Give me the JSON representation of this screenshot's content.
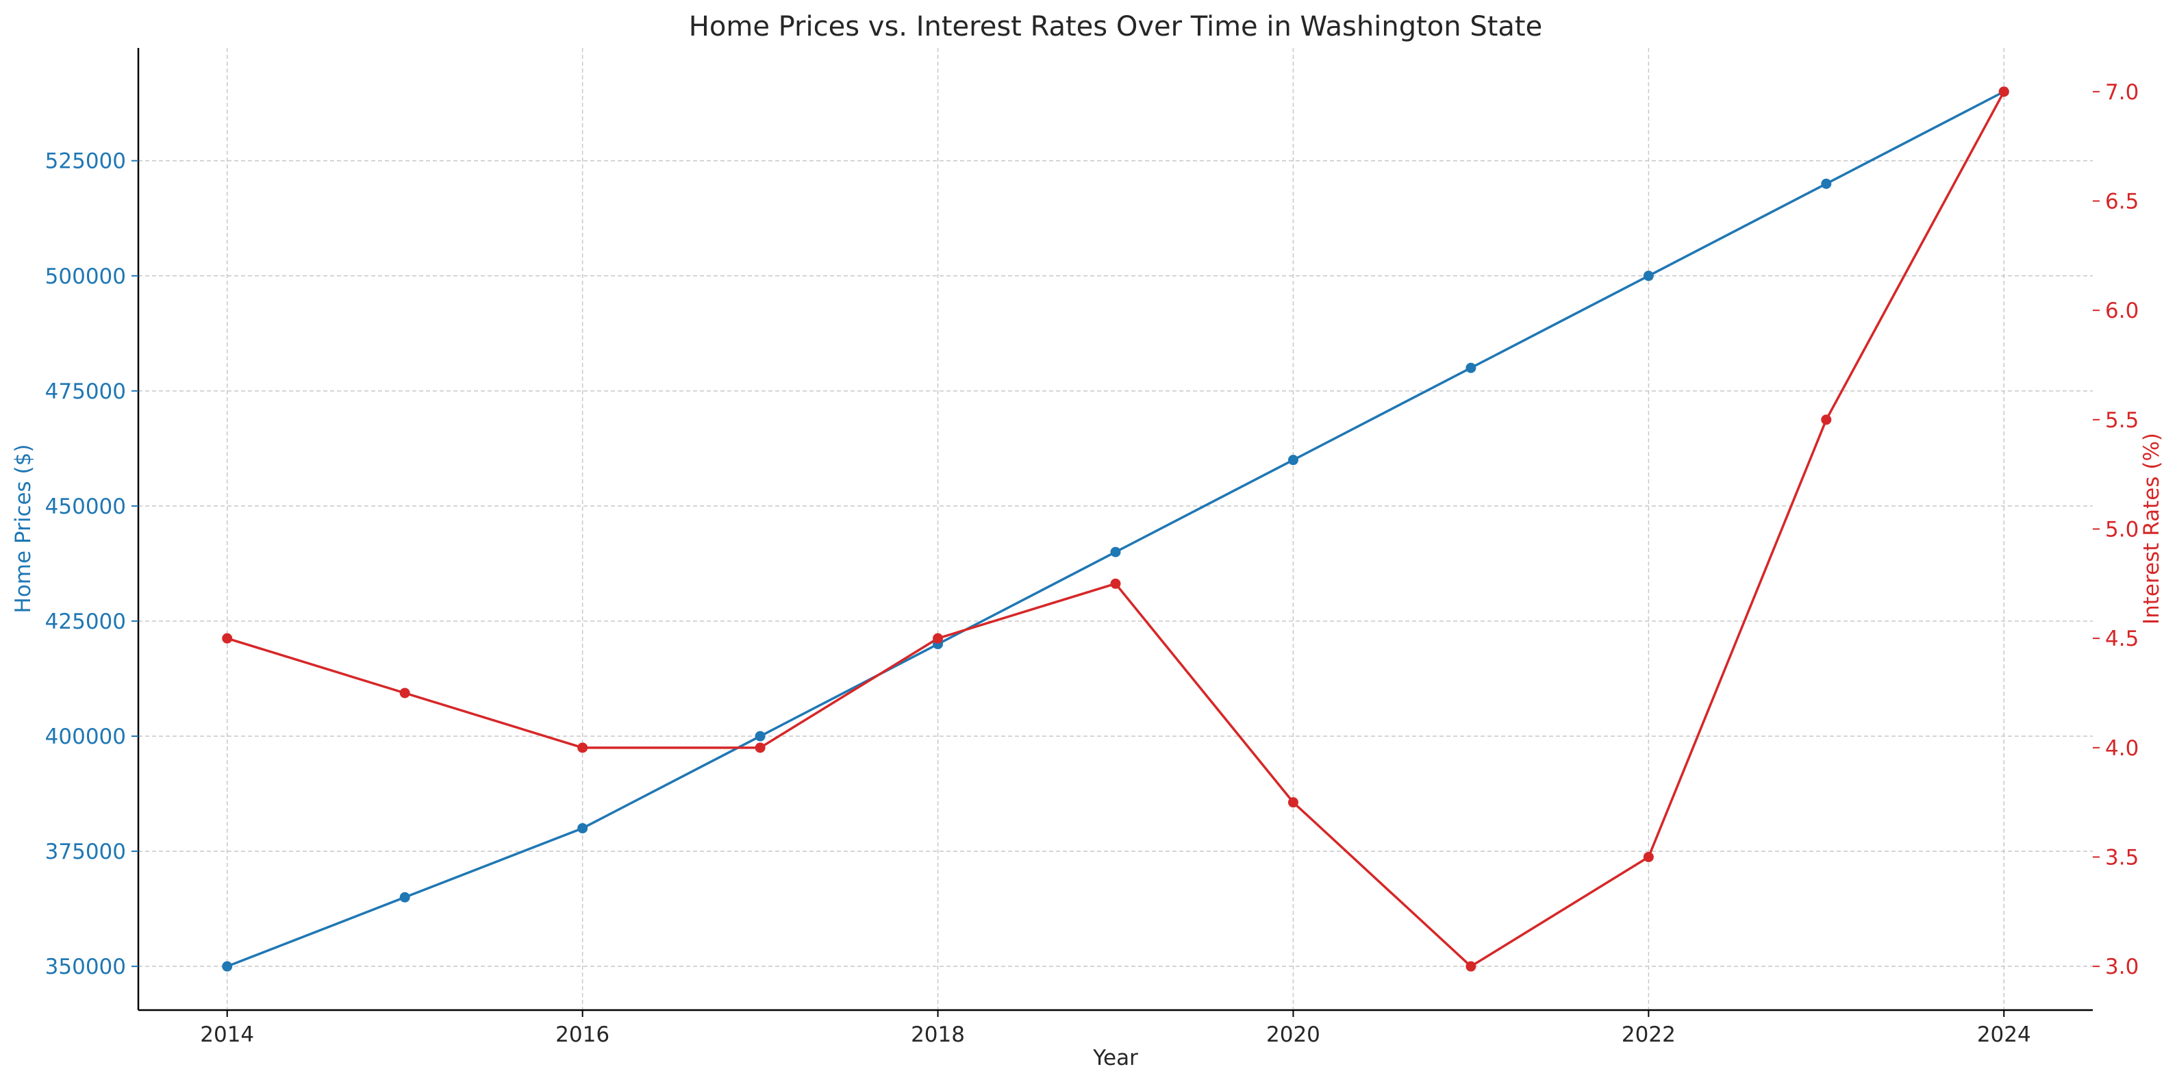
{
  "chart_data": {
    "type": "line",
    "title": "Home Prices vs. Interest Rates Over Time in Washington State",
    "xlabel": "Year",
    "x": [
      2014,
      2015,
      2016,
      2017,
      2018,
      2019,
      2020,
      2021,
      2022,
      2023,
      2024
    ],
    "x_ticks": [
      2014,
      2016,
      2018,
      2020,
      2022,
      2024
    ],
    "xlim": [
      2013.5,
      2024.5
    ],
    "grid": true,
    "series": [
      {
        "name": "",
        "axis": "left",
        "color": "#1f77b4",
        "values": [
          350000,
          365000,
          380000,
          400000,
          420000,
          440000,
          460000,
          480000,
          500000,
          520000,
          540000
        ]
      },
      {
        "name": "",
        "axis": "right",
        "color": "#d62728",
        "values": [
          4.5,
          4.25,
          4.0,
          4.0,
          4.5,
          4.75,
          3.75,
          3.0,
          3.5,
          5.5,
          7.0
        ]
      }
    ],
    "y_left": {
      "label": "Home Prices ($)",
      "color": "#1f77b4",
      "lim": [
        340500,
        549500
      ],
      "ticks": [
        350000,
        375000,
        400000,
        425000,
        450000,
        475000,
        500000,
        525000
      ]
    },
    "y_right": {
      "label": "Interest Rates (%)",
      "color": "#d62728",
      "lim": [
        2.8,
        7.2
      ],
      "ticks": [
        "3.0",
        "3.5",
        "4.0",
        "4.5",
        "5.0",
        "5.5",
        "6.0",
        "6.5",
        "7.0"
      ]
    }
  }
}
